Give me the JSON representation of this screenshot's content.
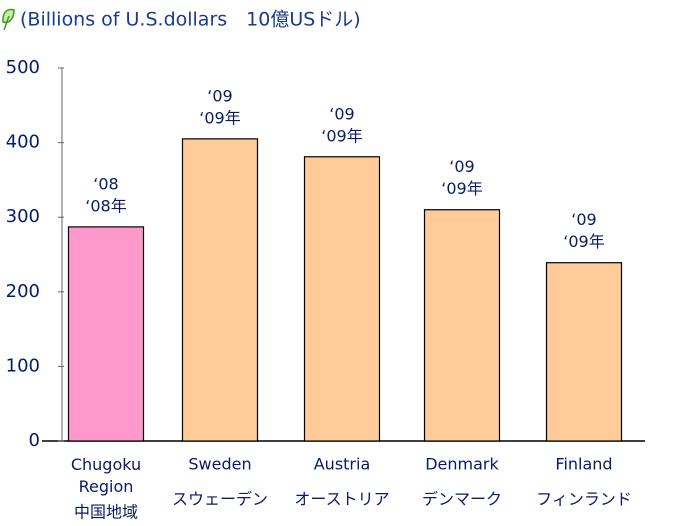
{
  "chart_data": {
    "type": "bar",
    "subtitle": "(Billions of U.S.dollars　10億USドル)",
    "categories": [
      "Chugoku Region",
      "Sweden",
      "Austria",
      "Denmark",
      "Finland"
    ],
    "categories_ja": [
      "中国地域",
      "スウェーデン",
      "オーストリア",
      "デンマーク",
      "フィンランド"
    ],
    "year_labels": [
      [
        "‘08",
        "‘08年"
      ],
      [
        "‘09",
        "‘09年"
      ],
      [
        "‘09",
        "‘09年"
      ],
      [
        "‘09",
        "‘09年"
      ],
      [
        "‘09",
        "‘09年"
      ]
    ],
    "values": [
      287,
      405,
      381,
      310,
      239
    ],
    "colors": [
      "#ff99cc",
      "#ffcc99",
      "#ffcc99",
      "#ffcc99",
      "#ffcc99"
    ],
    "ylim": [
      0,
      500
    ],
    "yticks": [
      0,
      100,
      200,
      300,
      400,
      500
    ]
  }
}
